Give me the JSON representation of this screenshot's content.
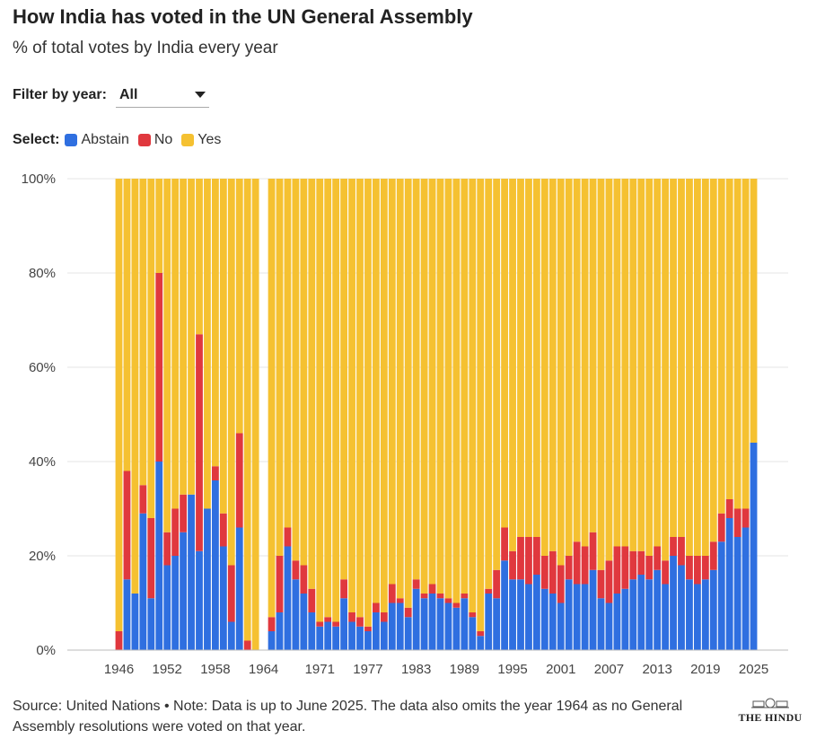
{
  "header": {
    "title": "How India has voted in the UN General Assembly",
    "subtitle": "% of total votes by India every year"
  },
  "filter": {
    "label": "Filter by year:",
    "value": "All",
    "icon": "chevron-down-icon"
  },
  "legend": {
    "label": "Select:",
    "items": [
      {
        "label": "Abstain",
        "color": "#2f6fe0"
      },
      {
        "label": "No",
        "color": "#e0383e"
      },
      {
        "label": "Yes",
        "color": "#f5c131"
      }
    ]
  },
  "colors": {
    "abstain": "#2f6fe0",
    "no": "#e0383e",
    "yes": "#f5c131",
    "grid": "#e6e6e6"
  },
  "chart_data": {
    "type": "bar",
    "stacked": true,
    "ylim": [
      0,
      100
    ],
    "yticks": [
      "0%",
      "20%",
      "40%",
      "60%",
      "80%",
      "100%"
    ],
    "xticks": [
      "1946",
      "1952",
      "1958",
      "1964",
      "1971",
      "1977",
      "1983",
      "1989",
      "1995",
      "2001",
      "2007",
      "2013",
      "2019",
      "2025"
    ],
    "grid": true,
    "categories": [
      "1946",
      "1947",
      "1948",
      "1949",
      "1950",
      "1951",
      "1952",
      "1953",
      "1954",
      "1955",
      "1956",
      "1957",
      "1958",
      "1959",
      "1960",
      "1961",
      "1962",
      "1963",
      "1964",
      "1965",
      "1966",
      "1967",
      "1968",
      "1969",
      "1970",
      "1971",
      "1972",
      "1973",
      "1974",
      "1975",
      "1976",
      "1977",
      "1978",
      "1979",
      "1980",
      "1981",
      "1982",
      "1983",
      "1984",
      "1985",
      "1986",
      "1987",
      "1988",
      "1989",
      "1990",
      "1991",
      "1992",
      "1993",
      "1994",
      "1995",
      "1996",
      "1997",
      "1998",
      "1999",
      "2000",
      "2001",
      "2002",
      "2003",
      "2004",
      "2005",
      "2006",
      "2007",
      "2008",
      "2009",
      "2010",
      "2011",
      "2012",
      "2013",
      "2014",
      "2015",
      "2016",
      "2017",
      "2018",
      "2019",
      "2020",
      "2021",
      "2022",
      "2023",
      "2024",
      "2025"
    ],
    "series": [
      {
        "name": "Abstain",
        "values": [
          0,
          15,
          12,
          29,
          11,
          40,
          18,
          20,
          25,
          33,
          21,
          30,
          36,
          22,
          6,
          26,
          0,
          0,
          null,
          4,
          8,
          22,
          15,
          12,
          8,
          5,
          6,
          5,
          11,
          6,
          5,
          4,
          8,
          6,
          10,
          10,
          7,
          13,
          11,
          12,
          11,
          10,
          9,
          11,
          7,
          3,
          12,
          11,
          19,
          15,
          15,
          14,
          16,
          13,
          12,
          10,
          15,
          14,
          14,
          17,
          11,
          10,
          12,
          13,
          15,
          16,
          15,
          17,
          14,
          20,
          18,
          15,
          14,
          15,
          17,
          23,
          28,
          24,
          26,
          44
        ]
      },
      {
        "name": "No",
        "values": [
          4,
          23,
          0,
          6,
          17,
          40,
          7,
          10,
          8,
          0,
          46,
          0,
          3,
          7,
          12,
          20,
          2,
          0,
          null,
          3,
          12,
          4,
          4,
          6,
          5,
          1,
          1,
          1,
          4,
          2,
          2,
          1,
          2,
          2,
          4,
          1,
          2,
          2,
          1,
          2,
          1,
          1,
          1,
          1,
          1,
          1,
          1,
          6,
          7,
          6,
          9,
          10,
          8,
          7,
          9,
          8,
          5,
          9,
          8,
          8,
          6,
          9,
          10,
          9,
          6,
          5,
          5,
          5,
          5,
          4,
          6,
          5,
          6,
          5,
          6,
          6,
          4,
          6,
          4,
          0
        ]
      }
    ]
  },
  "footer": {
    "source": "Source: United Nations • Note: Data is up to June 2025. The data also omits the year 1964 as no General Assembly resolutions were voted on that year.",
    "brand": "THE HINDU"
  }
}
